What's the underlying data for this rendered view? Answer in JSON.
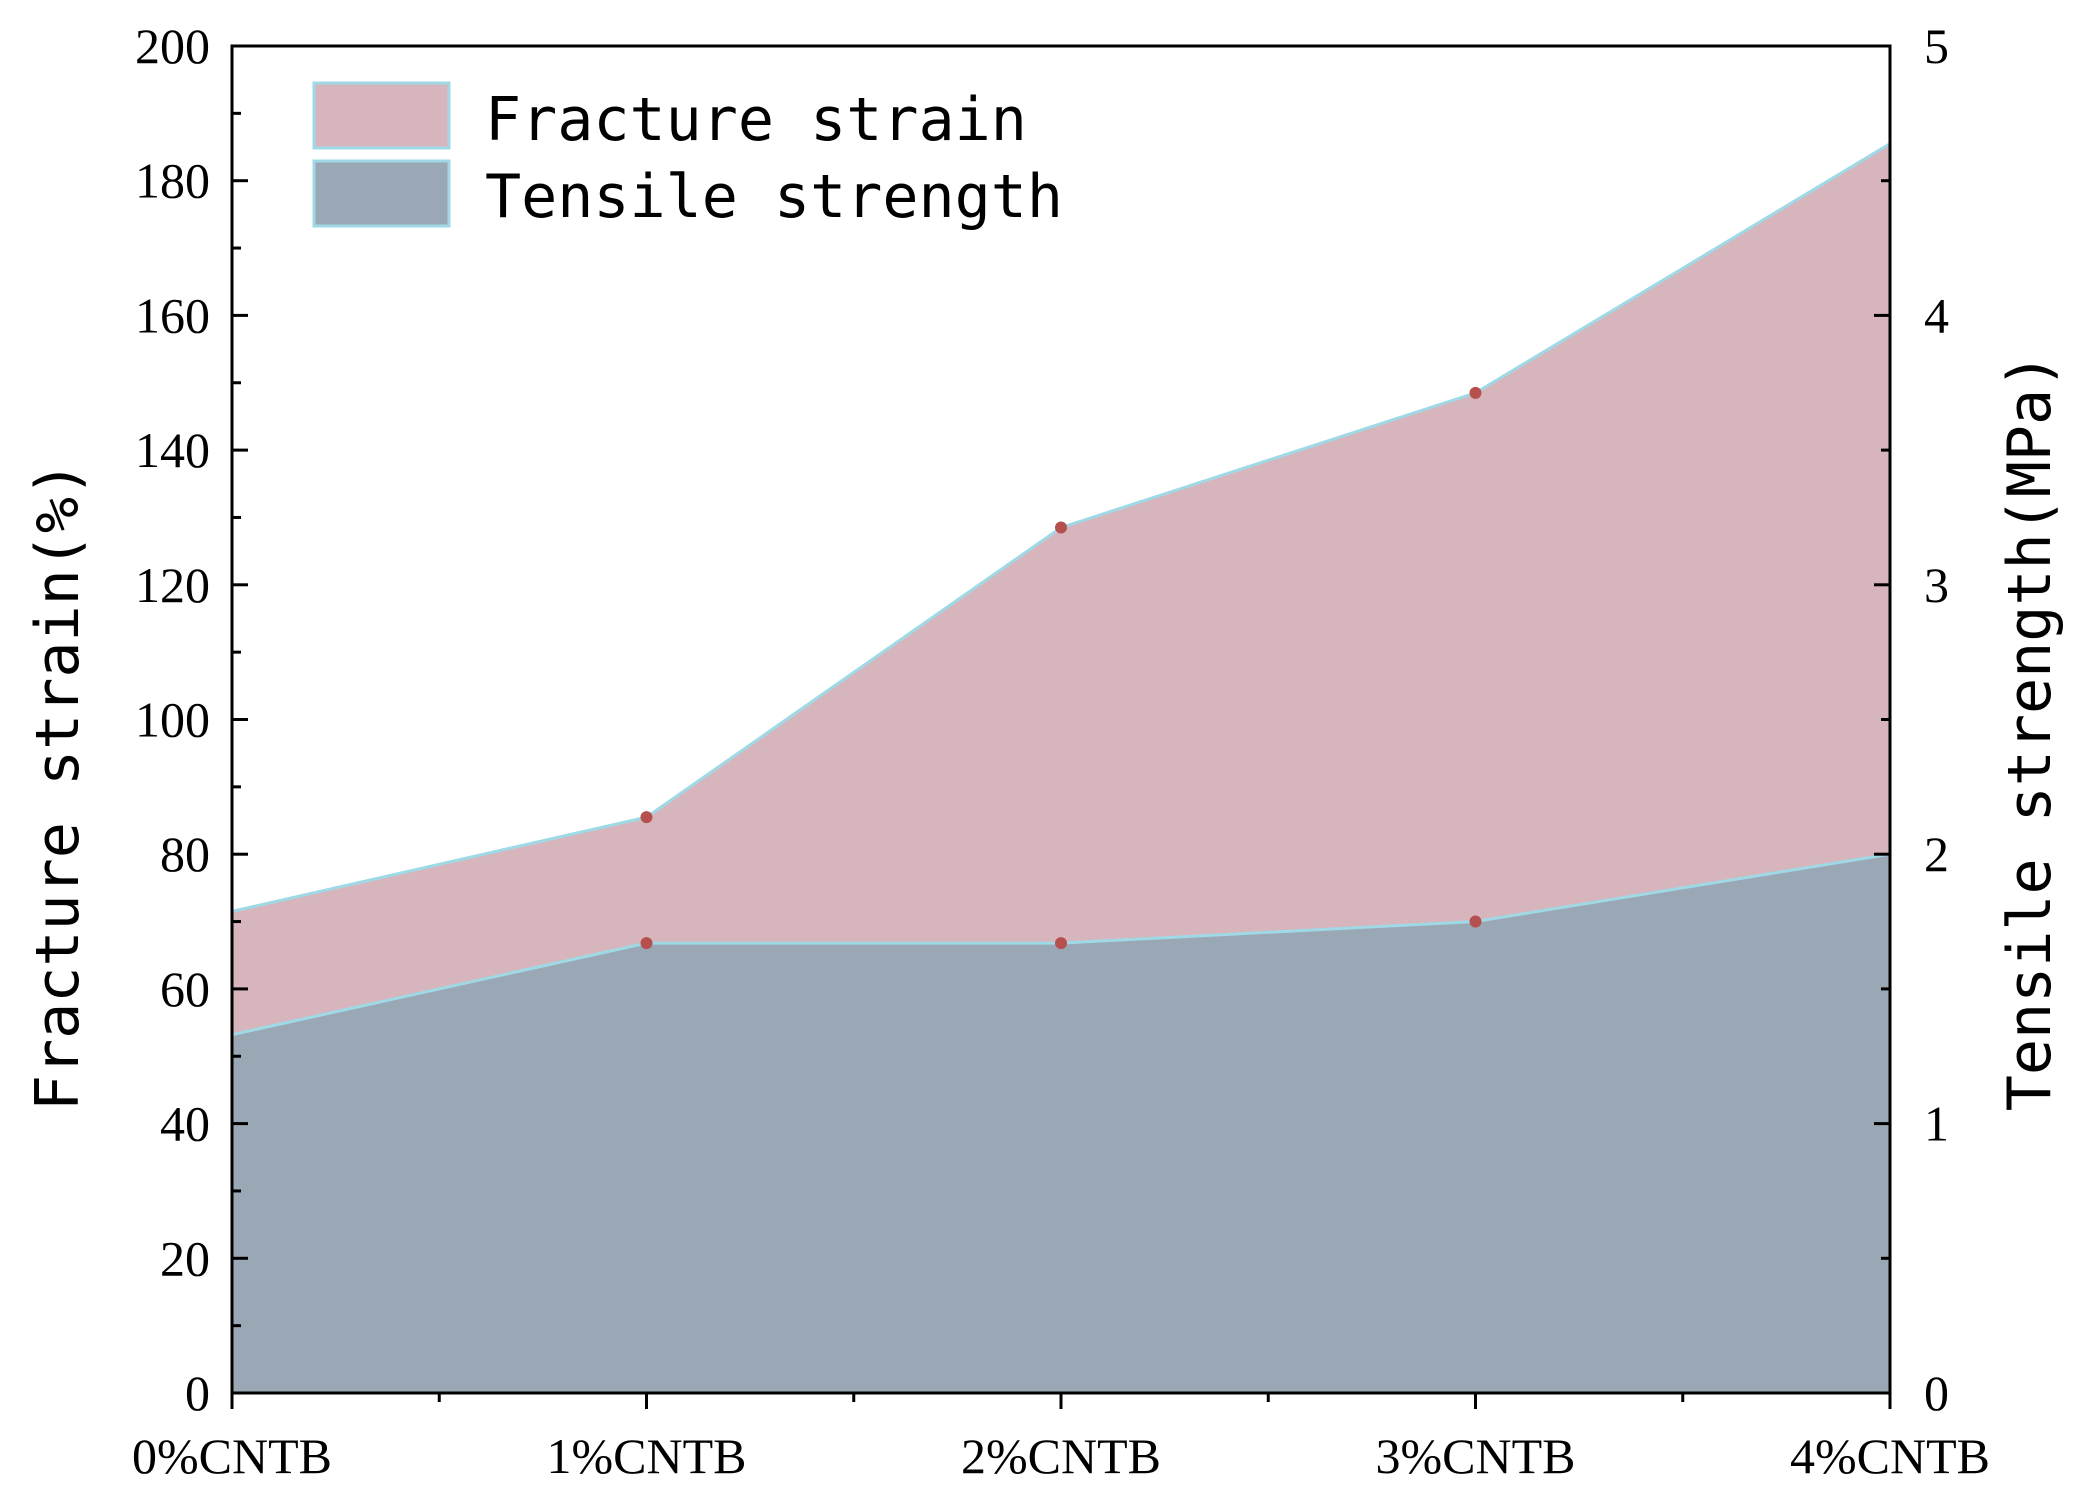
{
  "chart_data": {
    "type": "area",
    "categories": [
      "0%CNTB",
      "1%CNTB",
      "2%CNTB",
      "3%CNTB",
      "4%CNTB"
    ],
    "series": [
      {
        "name": "Fracture strain",
        "axis": "left",
        "values": [
          71.5,
          85.5,
          128.5,
          148.5,
          185.5
        ],
        "color": "#d7b5bc",
        "edge_color": "#9fd9e6",
        "marker_color": "#b5504f"
      },
      {
        "name": "Tensile strength",
        "axis": "right",
        "values": [
          1.33,
          1.67,
          1.67,
          1.75,
          2.0
        ],
        "color": "#9aa7b5",
        "edge_color": "#9fd9e6",
        "marker_color": "#b5504f"
      }
    ],
    "ylabel": "Fracture strain(%)",
    "y2label": "Tensile strength(MPa)",
    "xlabel": "",
    "ylim": [
      0,
      200
    ],
    "y2lim": [
      0,
      5
    ],
    "yticks": [
      "0",
      "20",
      "40",
      "60",
      "80",
      "100",
      "120",
      "140",
      "160",
      "180",
      "200"
    ],
    "y2ticks": [
      "0",
      "1",
      "2",
      "3",
      "4",
      "5"
    ],
    "grid": false,
    "legend_position": "top-left"
  }
}
